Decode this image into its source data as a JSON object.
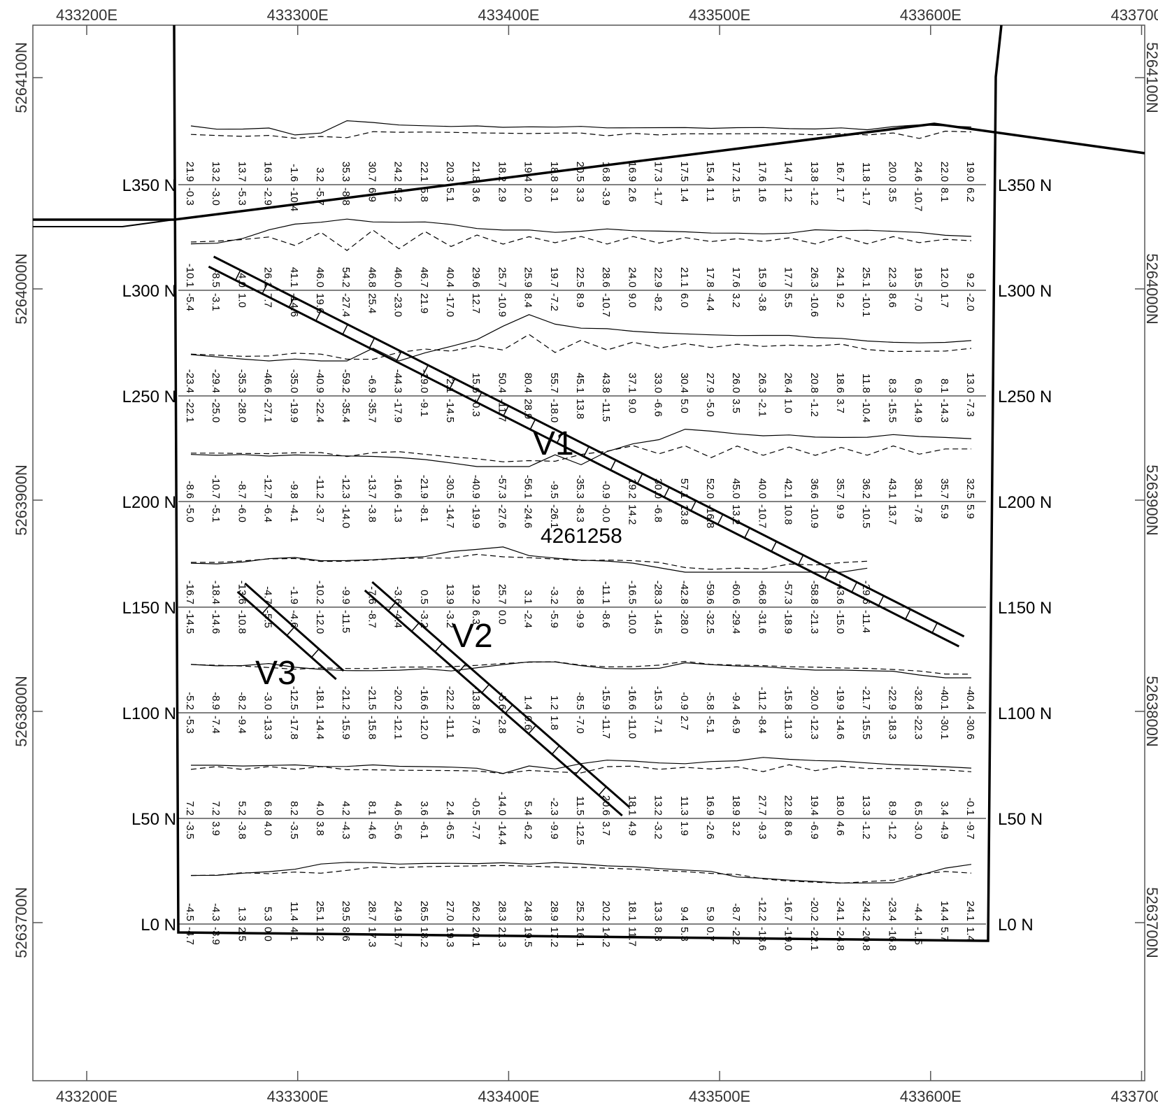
{
  "map": {
    "x_ticks": [
      "433200E",
      "433300E",
      "433400E",
      "433500E",
      "433600E",
      "433700E"
    ],
    "y_ticks": [
      "5264100N",
      "5264000N",
      "5263900N",
      "5263800N",
      "5263700N"
    ],
    "lines": [
      {
        "label": "L350 N",
        "northing_offset": 350
      },
      {
        "label": "L300 N",
        "northing_offset": 300
      },
      {
        "label": "L250 N",
        "northing_offset": 250
      },
      {
        "label": "L200 N",
        "northing_offset": 200
      },
      {
        "label": "L150 N",
        "northing_offset": 150
      },
      {
        "label": "L100 N",
        "northing_offset": 100
      },
      {
        "label": "L50 N",
        "northing_offset": 50
      },
      {
        "label": "L0 N",
        "northing_offset": 0
      }
    ],
    "veins": [
      {
        "label": "V1"
      },
      {
        "label": "V2"
      },
      {
        "label": "V3"
      }
    ],
    "claim_number": "4261258",
    "profiles": [
      {
        "line": "L350 N",
        "upper": [
          "21.9",
          "13.2",
          "13.7",
          "16.3",
          "-1.6",
          "3.2",
          "35.3",
          "30.7",
          "24.2",
          "22.1",
          "20.3",
          "21.8",
          "18.2",
          "19.4",
          "18.8",
          "20.5",
          "16.8",
          "16.9",
          "17.3",
          "17.5",
          "15.4",
          "17.2",
          "17.6",
          "14.7",
          "13.8",
          "16.7",
          "11.8",
          "20.0",
          "24.6",
          "22.0",
          "19.0"
        ],
        "lower": [
          "-0.3",
          "-3.0",
          "-5.3",
          "-2.9",
          "-10.4",
          "-5.7",
          "-8.8",
          "6.9",
          "5.2",
          "5.8",
          "5.1",
          "3.6",
          "2.9",
          "2.0",
          "3.1",
          "3.3",
          "-3.9",
          "2.6",
          "-1.7",
          "1.4",
          "1.1",
          "1.5",
          "1.6",
          "1.2",
          "-1.2",
          "1.7",
          "-1.7",
          "3.5",
          "-10.7",
          "8.1",
          "6.2"
        ]
      },
      {
        "line": "L300 N",
        "upper": [
          "-10.1",
          "-8.5",
          "4.0",
          "26.1",
          "41.1",
          "46.0",
          "54.2",
          "46.8",
          "46.0",
          "46.7",
          "40.4",
          "29.6",
          "25.7",
          "25.9",
          "19.7",
          "22.5",
          "28.6",
          "24.0",
          "22.9",
          "21.1",
          "17.8",
          "17.6",
          "15.9",
          "17.7",
          "26.3",
          "24.1",
          "25.1",
          "22.3",
          "19.5",
          "12.0",
          "9.2"
        ],
        "lower": [
          "-5.4",
          "-3.1",
          "1.0",
          "7.7",
          "-14.6",
          "19.6",
          "-27.4",
          "25.4",
          "-23.0",
          "21.9",
          "-17.0",
          "12.7",
          "-10.9",
          "8.4",
          "-7.2",
          "8.9",
          "-10.7",
          "9.0",
          "-8.2",
          "6.0",
          "-4.4",
          "3.2",
          "-3.8",
          "5.5",
          "-10.6",
          "9.2",
          "-10.1",
          "8.6",
          "-7.0",
          "1.7",
          "-2.0"
        ]
      },
      {
        "line": "L250 N",
        "upper": [
          "-23.4",
          "-29.4",
          "-35.3",
          "-46.6",
          "-35.0",
          "-40.9",
          "-59.2",
          "-6.9",
          "-44.3",
          "-19.0",
          "-2.1",
          "15.6",
          "50.4",
          "80.4",
          "55.7",
          "45.1",
          "43.8",
          "37.1",
          "33.0",
          "30.4",
          "27.9",
          "26.0",
          "26.3",
          "26.4",
          "20.8",
          "18.6",
          "11.8",
          "8.3",
          "6.9",
          "8.1",
          "13.0"
        ],
        "lower": [
          "-22.1",
          "-25.0",
          "-28.0",
          "-27.1",
          "-19.9",
          "-22.4",
          "-35.4",
          "-35.7",
          "-17.9",
          "-9.1",
          "-14.5",
          "-0.3",
          "-11.7",
          "28.9",
          "-18.0",
          "13.8",
          "-11.5",
          "9.0",
          "-6.6",
          "5.0",
          "-5.0",
          "3.5",
          "-2.1",
          "1.0",
          "-1.2",
          "3.7",
          "-10.4",
          "-15.5",
          "-14.9",
          "-14.3",
          "-7.3"
        ]
      },
      {
        "line": "L200 N",
        "upper": [
          "-8.6",
          "-10.7",
          "-8.7",
          "-12.7",
          "-9.8",
          "-11.2",
          "-12.3",
          "-13.7",
          "-16.6",
          "-21.9",
          "-30.5",
          "-40.9",
          "-57.3",
          "-56.1",
          "-9.5",
          "-35.3",
          "-0.9",
          "19.2",
          "30.0",
          "57.1",
          "52.0",
          "45.0",
          "40.0",
          "42.1",
          "36.6",
          "35.7",
          "36.2",
          "43.1",
          "38.1",
          "35.7",
          "32.5"
        ],
        "lower": [
          "-5.0",
          "-5.1",
          "-6.0",
          "-6.4",
          "-4.1",
          "-3.7",
          "-14.0",
          "-3.8",
          "-1.3",
          "-8.1",
          "-14.7",
          "-19.9",
          "-27.6",
          "-24.6",
          "-26.1",
          "-8.3",
          "-0.0",
          "14.2",
          "-6.8",
          "13.8",
          "-16.8",
          "13.2",
          "-10.7",
          "10.8",
          "-10.9",
          "9.9",
          "-10.5",
          "13.7",
          "-7.8",
          "5.9",
          "5.9"
        ]
      },
      {
        "line": "L150 N",
        "upper": [
          "-16.7",
          "-18.4",
          "-13.6",
          "-4.7",
          "-1.9",
          "-10.2",
          "-9.9",
          "-7.6",
          "-3.6",
          "0.5",
          "13.9",
          "19.2",
          "25.7",
          "3.1",
          "-3.2",
          "-8.8",
          "-11.1",
          "-16.5",
          "-28.3",
          "-42.8",
          "-59.6",
          "-60.6",
          "-66.8",
          "-57.3",
          "-58.8",
          "-43.6",
          "-29.6"
        ],
        "lower": [
          "-14.5",
          "-14.6",
          "-10.8",
          "-5.5",
          "-4.6",
          "-12.0",
          "-11.5",
          "-8.7",
          "-4.4",
          "-3.2",
          "-3.2",
          "6.3",
          "0.0",
          "-2.4",
          "-5.9",
          "-9.9",
          "-8.6",
          "-10.0",
          "-14.5",
          "-28.0",
          "-32.5",
          "-29.4",
          "-31.6",
          "-18.9",
          "-21.3",
          "-15.0",
          "-11.4"
        ]
      },
      {
        "line": "L100 N",
        "upper": [
          "-5.2",
          "-8.9",
          "-8.2",
          "-3.0",
          "-12.5",
          "-18.1",
          "-21.2",
          "-21.5",
          "-20.2",
          "-16.6",
          "-22.2",
          "-13.8",
          "-5.6",
          "1.4",
          "1.2",
          "-8.5",
          "-15.9",
          "-16.6",
          "-15.3",
          "-0.9",
          "-5.8",
          "-9.4",
          "-11.2",
          "-15.8",
          "-20.0",
          "-19.9",
          "-21.7",
          "-22.9",
          "-32.8",
          "-40.1",
          "-40.4"
        ],
        "lower": [
          "-5.3",
          "-7.4",
          "-9.4",
          "-13.3",
          "-17.8",
          "-14.4",
          "-15.9",
          "-15.8",
          "-12.1",
          "-12.0",
          "-11.1",
          "-7.6",
          "-2.8",
          "0.6",
          "1.8",
          "-7.0",
          "-11.7",
          "-11.0",
          "-7.1",
          "2.7",
          "-5.1",
          "-6.9",
          "-8.4",
          "-11.3",
          "-12.3",
          "-14.6",
          "-15.5",
          "-18.3",
          "-22.3",
          "-30.1",
          "-30.6"
        ]
      },
      {
        "line": "L50 N",
        "upper": [
          "7.2",
          "7.2",
          "5.2",
          "6.8",
          "8.2",
          "4.0",
          "4.2",
          "8.1",
          "4.6",
          "3.6",
          "2.4",
          "-0.5",
          "-14.0",
          "5.4",
          "-2.3",
          "11.5",
          "20.6",
          "18.1",
          "13.2",
          "11.3",
          "16.9",
          "18.9",
          "27.7",
          "22.8",
          "19.4",
          "18.0",
          "13.3",
          "8.9",
          "6.5",
          "3.4",
          "-0.1"
        ],
        "lower": [
          "-3.5",
          "3.9",
          "-3.8",
          "4.0",
          "-3.5",
          "3.8",
          "-4.3",
          "-4.6",
          "-5.6",
          "-6.1",
          "-6.5",
          "-7.7",
          "-14.4",
          "-6.2",
          "-9.9",
          "-12.5",
          "3.7",
          "4.9",
          "-3.2",
          "1.9",
          "-2.6",
          "3.2",
          "-9.3",
          "8.6",
          "-6.9",
          "4.6",
          "-1.2",
          "-1.2",
          "-3.0",
          "-4.9",
          "-9.7"
        ]
      },
      {
        "line": "L0 N",
        "upper": [
          "-4.5",
          "-4.3",
          "1.3",
          "5.3",
          "11.4",
          "25.1",
          "29.5",
          "28.7",
          "24.9",
          "26.5",
          "27.0",
          "26.2",
          "28.3",
          "24.8",
          "28.9",
          "25.2",
          "20.2",
          "18.1",
          "13.3",
          "9.4",
          "5.9",
          "-8.7",
          "-12.2",
          "-16.7",
          "-20.2",
          "-24.1",
          "-24.2",
          "-23.4",
          "-4.4",
          "14.4",
          "24.1"
        ],
        "lower": [
          "-4.7",
          "-3.9",
          "2.5",
          "0.0",
          "4.1",
          "1.2",
          "8.6",
          "17.3",
          "15.7",
          "18.2",
          "19.3",
          "20.1",
          "21.3",
          "19.5",
          "17.2",
          "16.1",
          "14.2",
          "11.7",
          "8.3",
          "5.3",
          "0.7",
          "-2.2",
          "-13.6",
          "-19.0",
          "-22.1",
          "-24.8",
          "-20.8",
          "-16.8",
          "-1.5",
          "5.7",
          "1.4"
        ]
      }
    ]
  }
}
